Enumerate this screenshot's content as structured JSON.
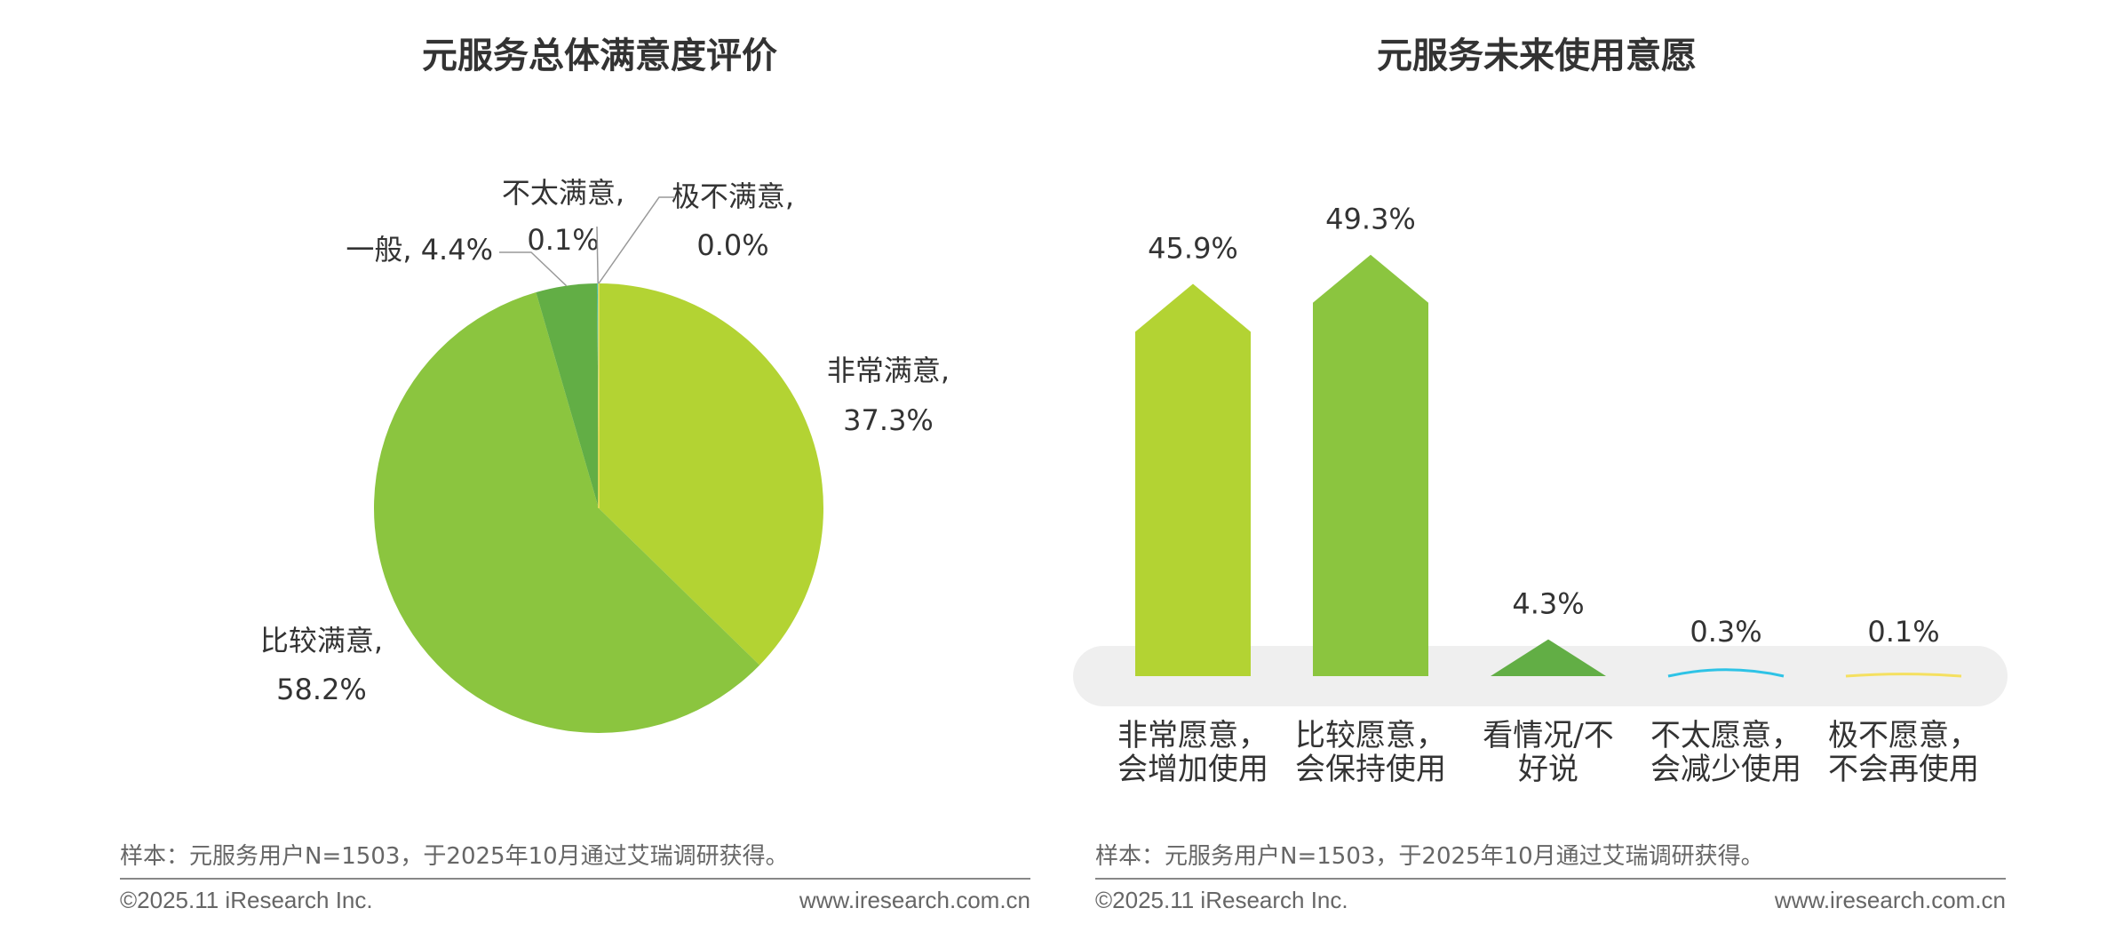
{
  "left_title": "元服务总体满意度评价",
  "right_title": "元服务未来使用意愿",
  "sample_note": "样本：元服务用户N=1503，于2025年10月通过艾瑞调研获得。",
  "copyright": "©2025.11 iResearch Inc.",
  "website": "www.iresearch.com.cn",
  "colors": {
    "green_light": "#B3D333",
    "green_mid": "#8BC53F",
    "green_dark": "#62AE45",
    "cyan": "#2EC3E6",
    "yellow": "#F5E060",
    "track": "#EFEFEF"
  },
  "chart_data": [
    {
      "type": "pie",
      "title": "元服务总体满意度评价",
      "slices": [
        {
          "label": "非常满意,",
          "value": 37.3,
          "value_label": "37.3%",
          "color": "#B3D333"
        },
        {
          "label": "比较满意,",
          "value": 58.2,
          "value_label": "58.2%",
          "color": "#8BC53F"
        },
        {
          "label": "一般, 4.4%",
          "value": 4.4,
          "value_label": "",
          "color": "#62AE45"
        },
        {
          "label": "不太满意,",
          "value": 0.1,
          "value_label": "0.1%",
          "color": "#2EC3E6"
        },
        {
          "label": "极不满意,",
          "value": 0.0,
          "value_label": "0.0%",
          "color": "#F5E060"
        }
      ]
    },
    {
      "type": "bar",
      "title": "元服务未来使用意愿",
      "categories": [
        [
          "非常愿意，",
          "会增加使用"
        ],
        [
          "比较愿意，",
          "会保持使用"
        ],
        [
          "看情况/不",
          "好说"
        ],
        [
          "不太愿意，",
          "会减少使用"
        ],
        [
          "极不愿意，",
          "不会再使用"
        ]
      ],
      "values": [
        45.9,
        49.3,
        4.3,
        0.3,
        0.1
      ],
      "value_labels": [
        "45.9%",
        "49.3%",
        "4.3%",
        "0.3%",
        "0.1%"
      ],
      "colors": [
        "#B3D333",
        "#8BC53F",
        "#62AE45",
        "#2EC3E6",
        "#F5E060"
      ],
      "ylim": [
        0,
        50
      ]
    }
  ]
}
